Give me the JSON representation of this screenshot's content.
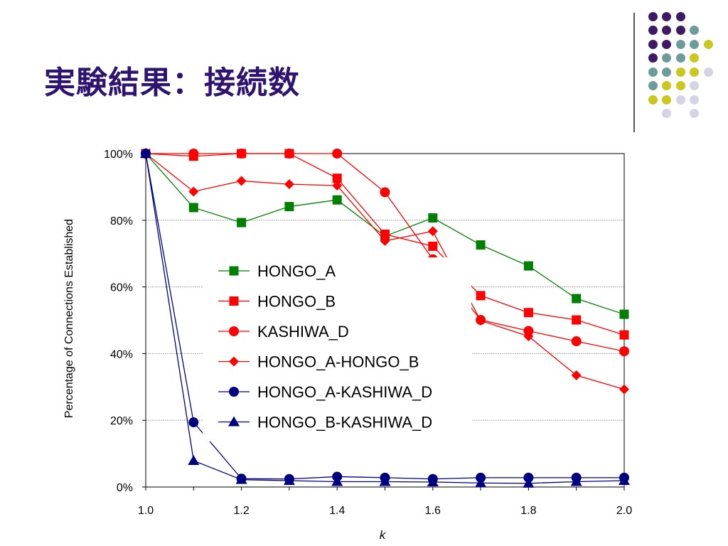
{
  "slide": {
    "title": "実験結果：接続数"
  },
  "decoration": {
    "colors": {
      "purple": "#3d1a63",
      "teal": "#6f9c9b",
      "yellow": "#c8c81e",
      "lavender": "#d4d4e6"
    },
    "rows": [
      [
        "purple",
        "purple",
        "purple"
      ],
      [
        "purple",
        "purple",
        "purple",
        "teal"
      ],
      [
        "purple",
        "purple",
        "teal",
        "teal",
        "yellow"
      ],
      [
        "purple",
        "teal",
        "teal",
        "yellow"
      ],
      [
        "teal",
        "teal",
        "yellow",
        "yellow",
        "lavender"
      ],
      [
        "teal",
        "yellow",
        "yellow",
        "lavender"
      ],
      [
        "yellow",
        "yellow",
        "lavender",
        "lavender"
      ],
      [
        "lavender",
        "lavender"
      ]
    ]
  },
  "chart_data": {
    "type": "line",
    "xlabel": "k",
    "ylabel": "Percentage of Connections Established",
    "xlim": [
      1.0,
      2.0
    ],
    "ylim": [
      0,
      100
    ],
    "xticks": [
      1.0,
      1.2,
      1.4,
      1.6,
      1.8,
      2.0
    ],
    "xtick_labels": [
      "1.0",
      "1.2",
      "1.4",
      "1.6",
      "1.8",
      "2.0"
    ],
    "yticks": [
      0,
      20,
      40,
      60,
      80,
      100
    ],
    "ytick_labels": [
      "0%",
      "20%",
      "40%",
      "60%",
      "80%",
      "100%"
    ],
    "grid": "horizontal dashed",
    "legend_position": "center",
    "x": [
      1.0,
      1.1,
      1.2,
      1.3,
      1.4,
      1.5,
      1.6,
      1.7,
      1.8,
      1.9,
      2.0
    ],
    "series": [
      {
        "name": "HONGO_A",
        "color": "#008000",
        "marker": "square",
        "values": [
          100,
          83.8,
          79.3,
          84.1,
          86.1,
          75.2,
          80.7,
          72.6,
          66.3,
          56.5,
          51.8
        ]
      },
      {
        "name": "HONGO_B",
        "color": "#ff0000",
        "marker": "square",
        "values": [
          100,
          99.2,
          100,
          100,
          92.6,
          75.8,
          72.2,
          57.4,
          52.3,
          50.1,
          45.6
        ]
      },
      {
        "name": "KASHIWA_D",
        "color": "#ff0000",
        "marker": "circle",
        "values": [
          100,
          100,
          100,
          100,
          100,
          88.4,
          68.3,
          50.1,
          46.8,
          43.7,
          40.7
        ]
      },
      {
        "name": "HONGO_A-HONGO_B",
        "color": "#ff0000",
        "marker": "diamond",
        "values": [
          100,
          88.6,
          91.8,
          90.8,
          90.4,
          73.8,
          76.7,
          49.9,
          45.2,
          33.5,
          29.3
        ]
      },
      {
        "name": "HONGO_A-KASHIWA_D",
        "color": "#000080",
        "marker": "circle",
        "values": [
          100,
          19.4,
          2.5,
          2.4,
          3.1,
          2.8,
          2.4,
          2.8,
          2.8,
          2.8,
          2.8
        ]
      },
      {
        "name": "HONGO_B-KASHIWA_D",
        "color": "#000080",
        "marker": "triangle",
        "values": [
          100,
          7.9,
          2.2,
          1.9,
          1.6,
          1.6,
          1.5,
          1.2,
          1.1,
          1.6,
          1.9
        ]
      }
    ]
  }
}
